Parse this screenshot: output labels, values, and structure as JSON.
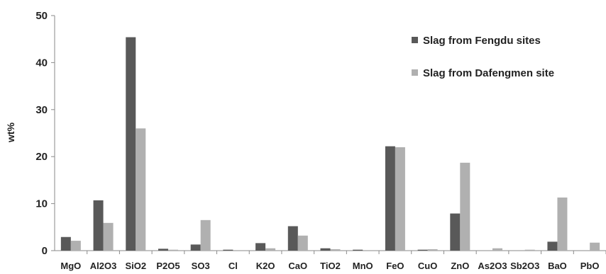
{
  "chart_data": {
    "type": "bar",
    "title": "",
    "xlabel": "",
    "ylabel": "wt%",
    "ylim": [
      0,
      50
    ],
    "yticks": [
      0,
      10,
      20,
      30,
      40,
      50
    ],
    "grid": false,
    "legend_position": "top-right",
    "categories": [
      "MgO",
      "Al2O3",
      "SiO2",
      "P2O5",
      "SO3",
      "Cl",
      "K2O",
      "CaO",
      "TiO2",
      "MnO",
      "FeO",
      "CuO",
      "ZnO",
      "As2O3",
      "Sb2O3",
      "BaO",
      "PbO"
    ],
    "series": [
      {
        "name": "Slag from Fengdu sites",
        "color": "#595959",
        "values": [
          2.9,
          10.7,
          45.4,
          0.4,
          1.3,
          0.2,
          1.6,
          5.2,
          0.5,
          0.2,
          22.2,
          0.2,
          7.9,
          0,
          0,
          1.9,
          0
        ]
      },
      {
        "name": "Slag from Dafengmen site",
        "color": "#b0b0b0",
        "values": [
          2.1,
          5.9,
          26.0,
          0.2,
          6.5,
          0,
          0.5,
          3.2,
          0.3,
          0,
          22.0,
          0.3,
          18.7,
          0.5,
          0.2,
          11.3,
          1.7
        ]
      }
    ]
  }
}
